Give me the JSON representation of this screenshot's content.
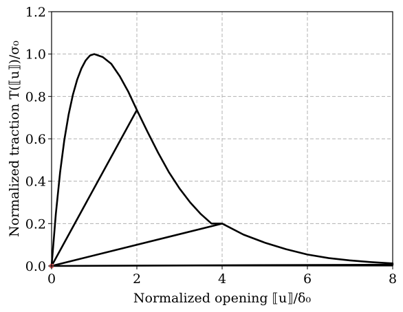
{
  "chart_data": {
    "type": "line",
    "xlabel": "Normalized opening ⟦u⟧/δ₀",
    "ylabel": "Normalized traction T(⟦u⟧)/σ₀",
    "xlim": [
      0,
      8
    ],
    "ylim": [
      0,
      1.2
    ],
    "x_ticks": [
      "0",
      "2",
      "4",
      "6",
      "8"
    ],
    "y_ticks": [
      "0.0",
      "0.2",
      "0.4",
      "0.6",
      "0.8",
      "1.0",
      "1.2"
    ],
    "grid": true,
    "series": [
      {
        "x": [
          0,
          0.1,
          0.2,
          0.3,
          0.4,
          0.5,
          0.6,
          0.7,
          0.8,
          0.9,
          1.0,
          1.2,
          1.4,
          1.6,
          1.8,
          2.0,
          2.25,
          2.5,
          2.75,
          3.0,
          3.25,
          3.5,
          3.75,
          4.0,
          4.5,
          5.0,
          5.5,
          6.0,
          6.5,
          7.0,
          7.5,
          8.0
        ],
        "y": [
          0,
          0.246,
          0.442,
          0.596,
          0.715,
          0.808,
          0.879,
          0.932,
          0.97,
          0.993,
          1.0,
          0.986,
          0.954,
          0.895,
          0.822,
          0.736,
          0.633,
          0.534,
          0.443,
          0.366,
          0.3,
          0.245,
          0.2,
          0.2,
          0.148,
          0.11,
          0.079,
          0.054,
          0.037,
          0.026,
          0.018,
          0.012
        ]
      },
      {
        "x": [
          0,
          2.0
        ],
        "y": [
          0,
          0.736
        ]
      },
      {
        "x": [
          0,
          4.0
        ],
        "y": [
          0,
          0.2
        ]
      },
      {
        "x": [
          0,
          8.0
        ],
        "y": [
          0,
          0.006
        ]
      }
    ],
    "markers": [
      {
        "x": 0,
        "y": 0,
        "color": "#e06060"
      }
    ],
    "line_color": "#000000"
  }
}
